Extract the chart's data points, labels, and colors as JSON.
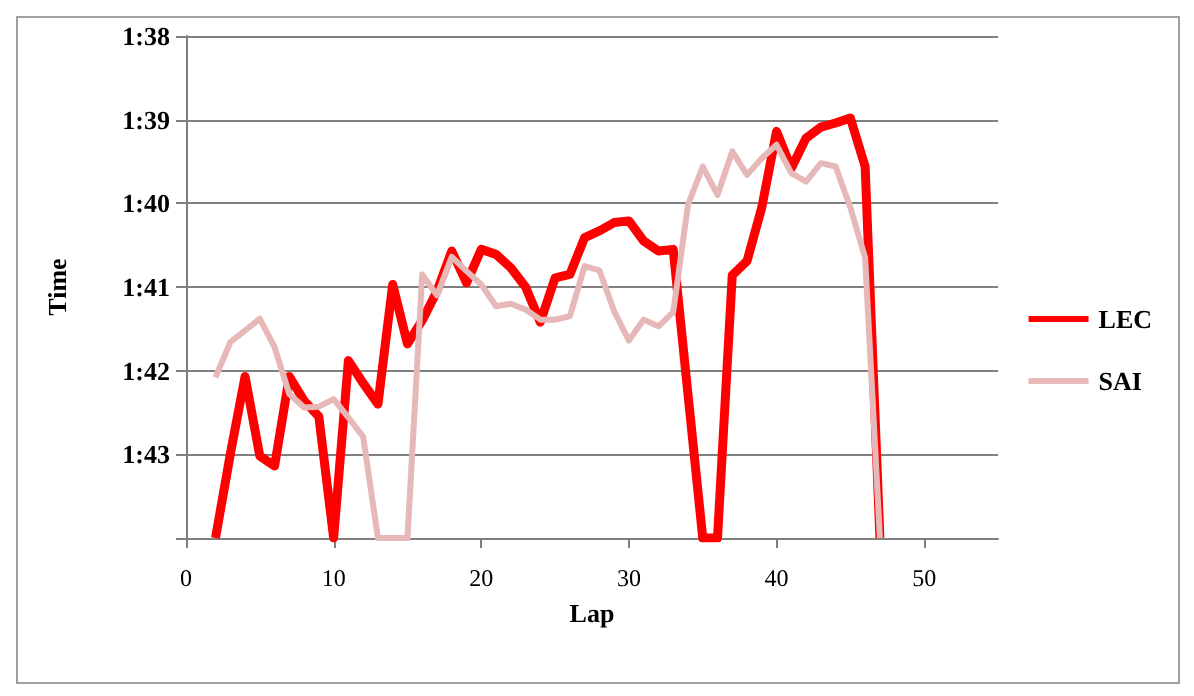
{
  "chart_data": {
    "type": "line",
    "xlabel": "Lap",
    "ylabel": "Time",
    "x": [
      2,
      3,
      4,
      5,
      6,
      7,
      8,
      9,
      10,
      11,
      12,
      13,
      14,
      15,
      16,
      17,
      18,
      19,
      20,
      21,
      22,
      23,
      24,
      25,
      26,
      27,
      28,
      29,
      30,
      31,
      32,
      33,
      34,
      35,
      36,
      37,
      38,
      39,
      40,
      41,
      42,
      43,
      44,
      45,
      46,
      47
    ],
    "series": [
      {
        "name": "LEC",
        "color": "#ff0000",
        "values": [
          104,
          103,
          102.07,
          103.02,
          103.14,
          102.07,
          102.36,
          102.55,
          104,
          101.88,
          102.15,
          102.4,
          100.97,
          101.68,
          101.4,
          101.05,
          100.57,
          100.95,
          100.55,
          100.61,
          100.77,
          101.0,
          101.42,
          100.89,
          100.85,
          100.41,
          100.33,
          100.23,
          100.21,
          100.45,
          100.57,
          100.55,
          102.28,
          104,
          104,
          100.86,
          100.69,
          100.05,
          99.14,
          99.58,
          99.22,
          99.09,
          99.04,
          98.98,
          99.56,
          104
        ]
      },
      {
        "name": "SAI",
        "color": "#e6b8b7",
        "values": [
          102.08,
          101.66,
          101.52,
          101.38,
          101.72,
          102.28,
          102.44,
          102.43,
          102.34,
          102.56,
          102.79,
          104,
          104,
          104,
          100.85,
          101.1,
          100.64,
          100.81,
          100.97,
          101.23,
          101.2,
          101.27,
          101.39,
          101.39,
          101.35,
          100.75,
          100.8,
          101.29,
          101.64,
          101.39,
          101.47,
          101.3,
          100.02,
          99.56,
          99.9,
          99.38,
          99.66,
          99.46,
          99.3,
          99.64,
          99.74,
          99.52,
          99.56,
          100.05,
          100.65,
          104
        ]
      }
    ],
    "xlim": [
      0,
      55
    ],
    "xticks": [
      0,
      10,
      20,
      30,
      40,
      50
    ],
    "ylim": [
      104,
      98
    ],
    "yticks": [
      {
        "value": 98,
        "label": "1:38"
      },
      {
        "value": 99,
        "label": "1:39"
      },
      {
        "value": 100,
        "label": "1:40"
      },
      {
        "value": 101,
        "label": "1:41"
      },
      {
        "value": 102,
        "label": "1:42"
      },
      {
        "value": 103,
        "label": "1:43"
      },
      {
        "value": 104,
        "label": null
      }
    ],
    "grid": "y",
    "legend": "right",
    "marker": "none",
    "line_style": "solid"
  }
}
